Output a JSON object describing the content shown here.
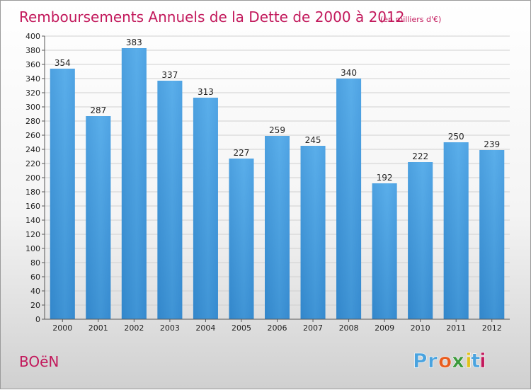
{
  "chart_data": {
    "type": "bar",
    "title": "Remboursements Annuels de la Dette de 2000 à 2012",
    "subtitle": "(en milliers d'€)",
    "categories": [
      "2000",
      "2001",
      "2002",
      "2003",
      "2004",
      "2005",
      "2006",
      "2007",
      "2008",
      "2009",
      "2010",
      "2011",
      "2012"
    ],
    "values": [
      354,
      287,
      383,
      337,
      313,
      227,
      259,
      245,
      340,
      192,
      222,
      250,
      239
    ],
    "ylim": [
      0,
      400
    ],
    "yticks": [
      0,
      20,
      40,
      60,
      80,
      100,
      120,
      140,
      160,
      180,
      200,
      220,
      240,
      260,
      280,
      300,
      320,
      340,
      360,
      380,
      400
    ],
    "grid": true,
    "bar_color": "#4a9ee0"
  },
  "footer": {
    "commune": "BOëN",
    "logo_letters": [
      "P",
      "r",
      "o",
      "x",
      "i",
      "t",
      "i"
    ],
    "logo_colors": [
      "#4aa3df",
      "#4aa3df",
      "#e85d1f",
      "#3c9a3c",
      "#e0c01a",
      "#4aa3df",
      "#c2185b"
    ]
  }
}
